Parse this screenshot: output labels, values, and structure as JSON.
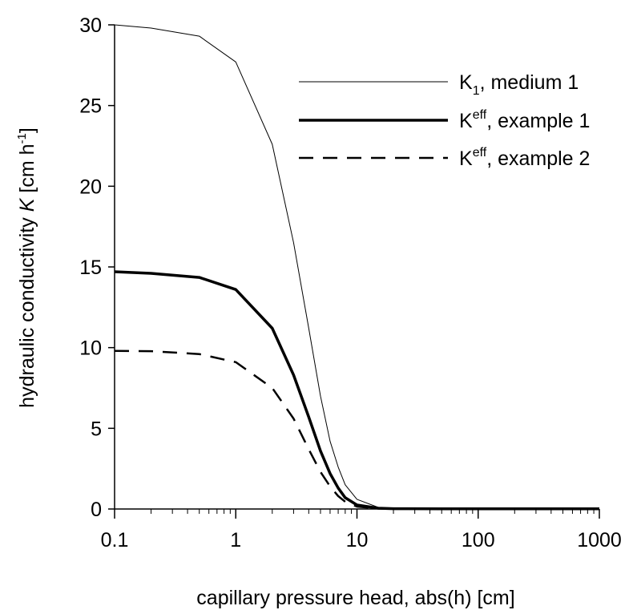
{
  "chart_data": {
    "type": "line",
    "x_scale": "log",
    "xlim": [
      0.1,
      1000
    ],
    "ylim": [
      0,
      30
    ],
    "grid": false,
    "legend_position": "top-right",
    "xlabel": "capillary pressure head, abs(h) [cm]",
    "ylabel": {
      "prefix": "hydraulic conductivity ",
      "italic": "K",
      "unit_open": " [cm h",
      "unit_sup": "-1",
      "unit_close": "]"
    },
    "x_ticks": [
      {
        "value": 0.1,
        "label": "0.1"
      },
      {
        "value": 1,
        "label": "1"
      },
      {
        "value": 10,
        "label": "10"
      },
      {
        "value": 100,
        "label": "100"
      },
      {
        "value": 1000,
        "label": "1000"
      }
    ],
    "y_ticks": [
      {
        "value": 0,
        "label": "0"
      },
      {
        "value": 5,
        "label": "5"
      },
      {
        "value": 10,
        "label": "10"
      },
      {
        "value": 15,
        "label": "15"
      },
      {
        "value": 20,
        "label": "20"
      },
      {
        "value": 25,
        "label": "25"
      },
      {
        "value": 30,
        "label": "30"
      }
    ],
    "series": [
      {
        "key": "k1",
        "name_main": "K",
        "name_script": "1",
        "name_script_type": "sub",
        "name_rest": ", medium 1",
        "style": "thin",
        "x": [
          0.1,
          0.2,
          0.5,
          1,
          2,
          3,
          4,
          5,
          6,
          7,
          8,
          10,
          15,
          20,
          50,
          100,
          1000
        ],
        "y": [
          30,
          29.8,
          29.3,
          27.7,
          22.6,
          16.5,
          11.2,
          7.0,
          4.2,
          2.6,
          1.5,
          0.6,
          0.1,
          0.05,
          0.02,
          0.01,
          0.01
        ]
      },
      {
        "key": "keff1",
        "name_main": "K",
        "name_script": "eff",
        "name_script_type": "sup",
        "name_rest": ", example 1",
        "style": "thick",
        "x": [
          0.1,
          0.2,
          0.5,
          1,
          2,
          3,
          4,
          5,
          6,
          7,
          8,
          10,
          15,
          20,
          50,
          100,
          1000
        ],
        "y": [
          14.7,
          14.6,
          14.35,
          13.6,
          11.2,
          8.3,
          5.7,
          3.6,
          2.2,
          1.3,
          0.7,
          0.25,
          0.05,
          0.02,
          0.01,
          0.01,
          0.01
        ]
      },
      {
        "key": "keff2",
        "name_main": "K",
        "name_script": "eff",
        "name_script_type": "sup",
        "name_rest": ", example 2",
        "style": "dashed",
        "x": [
          0.1,
          0.2,
          0.5,
          1,
          2,
          3,
          4,
          5,
          6,
          7,
          8,
          10,
          15,
          20,
          50,
          100,
          1000
        ],
        "y": [
          9.8,
          9.78,
          9.6,
          9.1,
          7.5,
          5.6,
          3.7,
          2.3,
          1.4,
          0.8,
          0.45,
          0.15,
          0.03,
          0.01,
          0.01,
          0.01,
          0.01
        ]
      }
    ]
  }
}
